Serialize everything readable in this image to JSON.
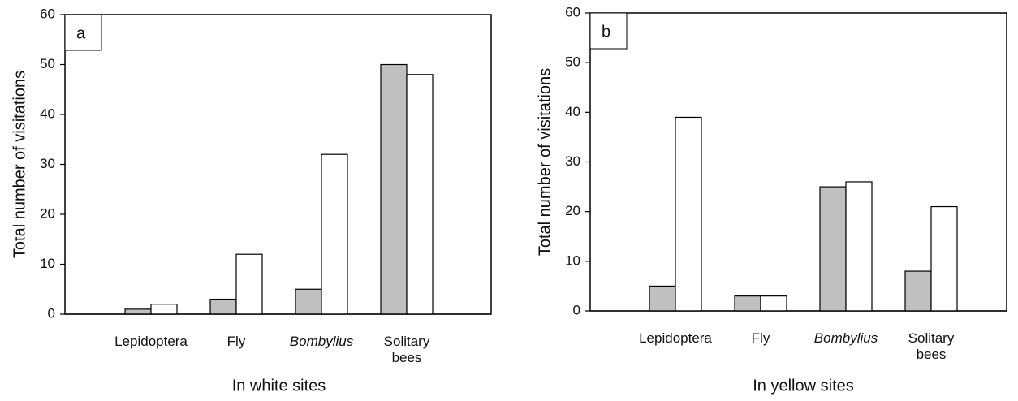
{
  "chart_data": [
    {
      "type": "bar",
      "panel_label": "a",
      "categories": [
        "Lepidoptera",
        "Fly",
        "Bombylius",
        "Solitary bees"
      ],
      "series": [
        {
          "color": "#c0c0c0",
          "values": [
            1,
            3,
            5,
            50
          ]
        },
        {
          "color": "#ffffff",
          "values": [
            2,
            12,
            32,
            48
          ]
        }
      ],
      "ylim": [
        0,
        60
      ],
      "yticks": [
        0,
        10,
        20,
        30,
        40,
        50,
        60
      ],
      "ylabel": "Total number of visitations",
      "xlabel": "In white sites"
    },
    {
      "type": "bar",
      "panel_label": "b",
      "categories": [
        "Lepidoptera",
        "Fly",
        "Bombylius",
        "Solitary bees"
      ],
      "series": [
        {
          "color": "#c0c0c0",
          "values": [
            5,
            3,
            25,
            8
          ]
        },
        {
          "color": "#ffffff",
          "values": [
            39,
            3,
            26,
            21
          ]
        }
      ],
      "ylim": [
        0,
        60
      ],
      "yticks": [
        0,
        10,
        20,
        30,
        40,
        50,
        60
      ],
      "ylabel": "Total number of visitations",
      "xlabel": "In yellow sites"
    }
  ]
}
